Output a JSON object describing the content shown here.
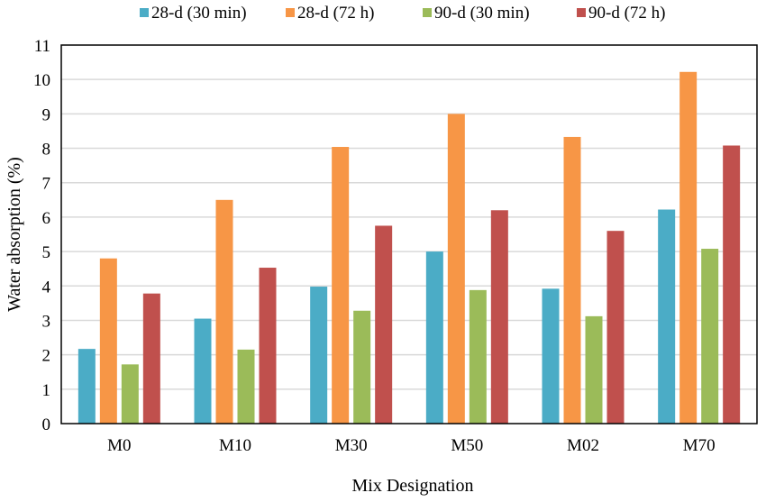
{
  "chart_data": {
    "type": "bar",
    "title": "",
    "xlabel": "Mix Designation",
    "ylabel": "Water absorption (%)",
    "ylim": [
      0,
      11
    ],
    "yticks": [
      0,
      1,
      2,
      3,
      4,
      5,
      6,
      7,
      8,
      9,
      10,
      11
    ],
    "grid": true,
    "legend_position": "top",
    "categories": [
      "M0",
      "M10",
      "M30",
      "M50",
      "M02",
      "M70"
    ],
    "series": [
      {
        "name": "28-d (30 min)",
        "color": "#4bacc6",
        "values": [
          2.17,
          3.05,
          3.98,
          5.0,
          3.92,
          6.22
        ]
      },
      {
        "name": "28-d (72 h)",
        "color": "#f79646",
        "values": [
          4.8,
          6.5,
          8.04,
          9.0,
          8.33,
          10.22
        ]
      },
      {
        "name": "90-d (30 min)",
        "color": "#9bbb59",
        "values": [
          1.72,
          2.15,
          3.28,
          3.88,
          3.12,
          5.08
        ]
      },
      {
        "name": "90-d (72 h)",
        "color": "#c0504d",
        "values": [
          3.78,
          4.53,
          5.75,
          6.2,
          5.6,
          8.08
        ]
      }
    ]
  }
}
